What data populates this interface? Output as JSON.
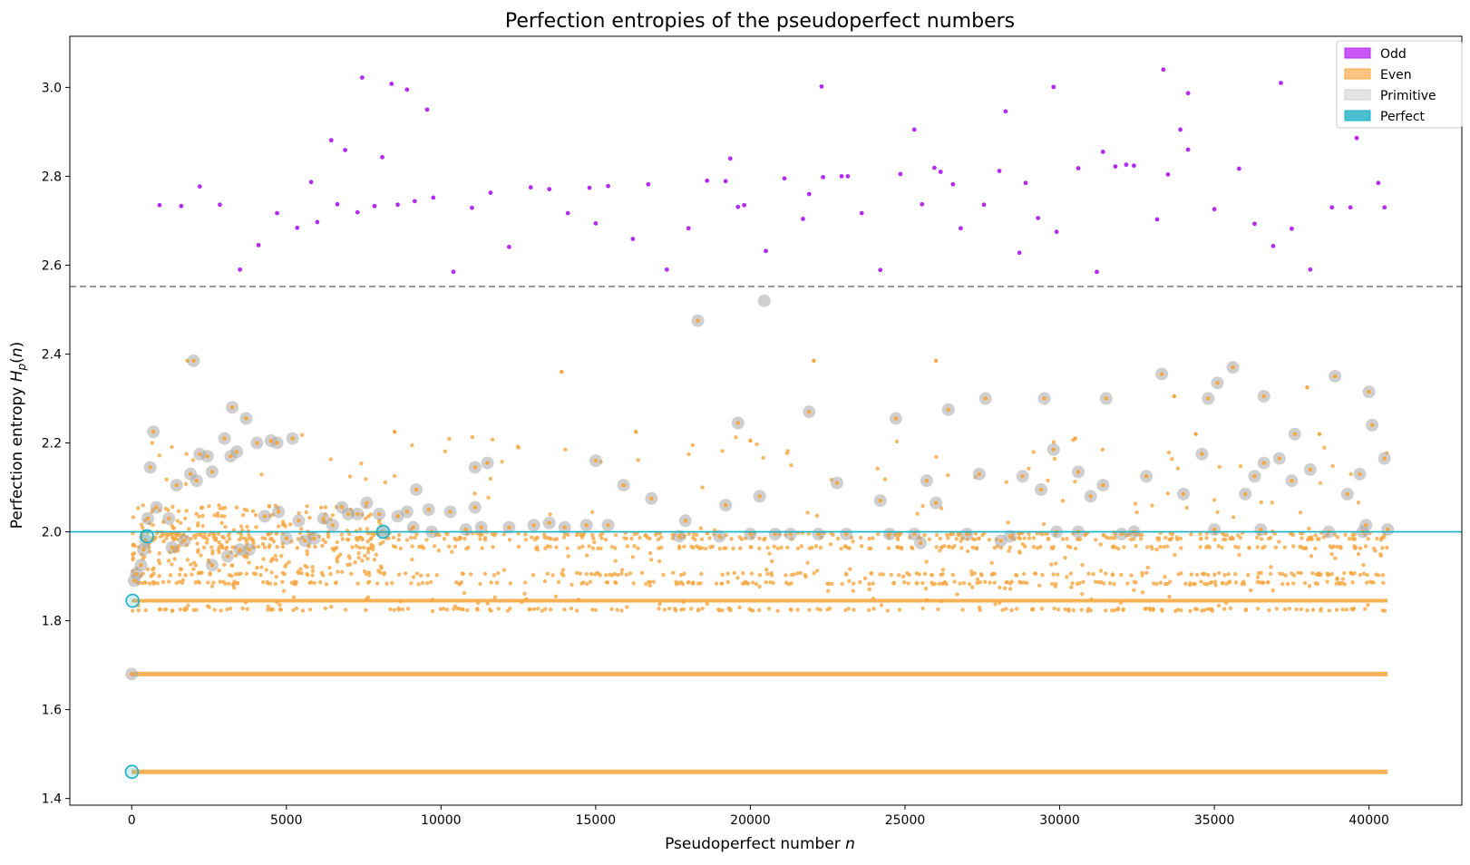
{
  "chart_data": {
    "type": "scatter",
    "title": "Perfection entropies of the pseudoperfect numbers",
    "xlabel_prefix": "Pseudoperfect number ",
    "xlabel_var": "n",
    "ylabel_prefix": "Perfection entropy ",
    "ylabel_var": "H",
    "ylabel_sub": "p",
    "ylabel_suffix_open": "(",
    "ylabel_suffix_close": ")",
    "xlim": [
      -2000,
      43000
    ],
    "ylim": [
      1.385,
      3.115
    ],
    "x_ticks": [
      0,
      5000,
      10000,
      15000,
      20000,
      25000,
      30000,
      35000,
      40000
    ],
    "x_tick_labels": [
      "0",
      "5000",
      "10000",
      "15000",
      "20000",
      "25000",
      "30000",
      "35000",
      "40000"
    ],
    "y_ticks": [
      1.4,
      1.6,
      1.8,
      2.0,
      2.2,
      2.4,
      2.6,
      2.8,
      3.0
    ],
    "y_tick_labels": [
      "1.4",
      "1.6",
      "1.8",
      "2.0",
      "2.2",
      "2.4",
      "2.6",
      "2.8",
      "3.0"
    ],
    "grid": false,
    "legend_position": "top-right",
    "legend": [
      {
        "label": "Odd",
        "color": "#b32bf0"
      },
      {
        "label": "Even",
        "color": "#f5a742"
      },
      {
        "label": "Primitive",
        "color": "#c8c8c8"
      },
      {
        "label": "Perfect",
        "color": "#17b0c8"
      }
    ],
    "reference_lines": [
      {
        "y": 2.552,
        "style": "dashed",
        "color": "#808080"
      },
      {
        "y": 2.0,
        "style": "solid",
        "color": "#17b0c8"
      }
    ],
    "dense_bands": [
      {
        "series": "Even",
        "y": 1.46,
        "x_range": [
          0,
          40600
        ]
      },
      {
        "series": "Even",
        "y": 1.68,
        "x_range": [
          0,
          40600
        ]
      },
      {
        "series": "Even",
        "y": 1.845,
        "x_range": [
          0,
          40600
        ]
      }
    ],
    "series": [
      {
        "name": "Odd",
        "color": "#b32bf0",
        "points": [
          [
            900,
            2.735
          ],
          [
            1600,
            2.733
          ],
          [
            2200,
            2.777
          ],
          [
            2850,
            2.736
          ],
          [
            3500,
            2.59
          ],
          [
            4100,
            2.645
          ],
          [
            4700,
            2.717
          ],
          [
            5350,
            2.684
          ],
          [
            5800,
            2.787
          ],
          [
            6000,
            2.697
          ],
          [
            6450,
            2.881
          ],
          [
            6650,
            2.737
          ],
          [
            6900,
            2.859
          ],
          [
            7300,
            2.719
          ],
          [
            7450,
            3.022
          ],
          [
            7850,
            2.733
          ],
          [
            8100,
            2.843
          ],
          [
            8400,
            3.008
          ],
          [
            8600,
            2.736
          ],
          [
            8900,
            2.995
          ],
          [
            9150,
            2.744
          ],
          [
            9550,
            2.95
          ],
          [
            9750,
            2.752
          ],
          [
            10400,
            2.585
          ],
          [
            11000,
            2.729
          ],
          [
            11600,
            2.763
          ],
          [
            12200,
            2.641
          ],
          [
            12900,
            2.775
          ],
          [
            13500,
            2.771
          ],
          [
            14100,
            2.717
          ],
          [
            14800,
            2.774
          ],
          [
            15000,
            2.694
          ],
          [
            15400,
            2.778
          ],
          [
            16200,
            2.659
          ],
          [
            16700,
            2.782
          ],
          [
            17300,
            2.59
          ],
          [
            18000,
            2.683
          ],
          [
            18600,
            2.79
          ],
          [
            19200,
            2.789
          ],
          [
            19350,
            2.84
          ],
          [
            19600,
            2.731
          ],
          [
            19800,
            2.735
          ],
          [
            20500,
            2.632
          ],
          [
            21100,
            2.795
          ],
          [
            21700,
            2.704
          ],
          [
            21900,
            2.76
          ],
          [
            22300,
            3.002
          ],
          [
            22350,
            2.798
          ],
          [
            22950,
            2.8
          ],
          [
            23150,
            2.8
          ],
          [
            23600,
            2.717
          ],
          [
            24200,
            2.589
          ],
          [
            24850,
            2.805
          ],
          [
            25300,
            2.905
          ],
          [
            25550,
            2.737
          ],
          [
            25950,
            2.819
          ],
          [
            26150,
            2.81
          ],
          [
            26550,
            2.782
          ],
          [
            26800,
            2.683
          ],
          [
            27550,
            2.736
          ],
          [
            28050,
            2.812
          ],
          [
            28250,
            2.946
          ],
          [
            28700,
            2.628
          ],
          [
            28900,
            2.785
          ],
          [
            29300,
            2.706
          ],
          [
            29800,
            3.001
          ],
          [
            29900,
            2.675
          ],
          [
            31200,
            2.585
          ],
          [
            30600,
            2.818
          ],
          [
            31400,
            2.855
          ],
          [
            31800,
            2.822
          ],
          [
            32150,
            2.826
          ],
          [
            32400,
            2.824
          ],
          [
            33150,
            2.703
          ],
          [
            33350,
            3.04
          ],
          [
            33500,
            2.804
          ],
          [
            33900,
            2.905
          ],
          [
            34150,
            2.987
          ],
          [
            34150,
            2.86
          ],
          [
            35000,
            2.726
          ],
          [
            35800,
            2.817
          ],
          [
            36300,
            2.693
          ],
          [
            36900,
            2.643
          ],
          [
            37150,
            3.01
          ],
          [
            37500,
            2.682
          ],
          [
            38100,
            2.59
          ],
          [
            38800,
            2.73
          ],
          [
            39400,
            2.73
          ],
          [
            39600,
            2.886
          ],
          [
            40300,
            2.785
          ],
          [
            40500,
            2.73
          ]
        ]
      },
      {
        "name": "Primitive",
        "color": "#c8c8c8",
        "points": [
          [
            0,
            1.68
          ],
          [
            80,
            1.89
          ],
          [
            150,
            1.905
          ],
          [
            300,
            1.925
          ],
          [
            380,
            1.96
          ],
          [
            450,
            1.98
          ],
          [
            520,
            2.03
          ],
          [
            600,
            2.145
          ],
          [
            700,
            2.225
          ],
          [
            800,
            2.055
          ],
          [
            1200,
            2.03
          ],
          [
            1300,
            1.965
          ],
          [
            1450,
            2.105
          ],
          [
            1700,
            1.98
          ],
          [
            1900,
            2.13
          ],
          [
            2000,
            2.385
          ],
          [
            2100,
            2.115
          ],
          [
            2200,
            2.175
          ],
          [
            2450,
            2.17
          ],
          [
            2600,
            1.925
          ],
          [
            2600,
            2.135
          ],
          [
            3000,
            2.21
          ],
          [
            3100,
            1.945
          ],
          [
            3200,
            2.17
          ],
          [
            3250,
            2.28
          ],
          [
            3400,
            2.18
          ],
          [
            3500,
            1.96
          ],
          [
            3700,
            2.255
          ],
          [
            3800,
            1.96
          ],
          [
            4050,
            2.2
          ],
          [
            4300,
            2.035
          ],
          [
            4500,
            2.205
          ],
          [
            4700,
            2.2
          ],
          [
            4750,
            2.045
          ],
          [
            5000,
            1.985
          ],
          [
            5200,
            2.21
          ],
          [
            5400,
            2.025
          ],
          [
            5600,
            1.98
          ],
          [
            5900,
            1.985
          ],
          [
            6200,
            2.03
          ],
          [
            6500,
            2.015
          ],
          [
            6800,
            2.055
          ],
          [
            7000,
            2.04
          ],
          [
            7300,
            2.04
          ],
          [
            7600,
            2.065
          ],
          [
            8000,
            2.04
          ],
          [
            8100,
            2.0
          ],
          [
            8600,
            2.035
          ],
          [
            8900,
            2.045
          ],
          [
            9100,
            2.01
          ],
          [
            9200,
            2.095
          ],
          [
            9600,
            2.05
          ],
          [
            9700,
            2.0
          ],
          [
            10300,
            2.045
          ],
          [
            10800,
            2.005
          ],
          [
            11100,
            2.055
          ],
          [
            11100,
            2.145
          ],
          [
            11300,
            2.01
          ],
          [
            11500,
            2.155
          ],
          [
            12200,
            2.01
          ],
          [
            13000,
            2.015
          ],
          [
            13500,
            2.02
          ],
          [
            14000,
            2.01
          ],
          [
            14700,
            2.015
          ],
          [
            15000,
            2.16
          ],
          [
            15400,
            2.015
          ],
          [
            15900,
            2.105
          ],
          [
            16800,
            2.075
          ],
          [
            17700,
            1.99
          ],
          [
            17900,
            2.025
          ],
          [
            18300,
            2.475
          ],
          [
            19000,
            1.99
          ],
          [
            19200,
            2.06
          ],
          [
            19600,
            2.245
          ],
          [
            20000,
            1.995
          ],
          [
            20300,
            2.08
          ],
          [
            20450,
            2.52
          ],
          [
            20800,
            1.995
          ],
          [
            21300,
            1.995
          ],
          [
            21900,
            2.27
          ],
          [
            22200,
            1.995
          ],
          [
            22800,
            2.11
          ],
          [
            23100,
            1.995
          ],
          [
            24200,
            2.07
          ],
          [
            24500,
            1.995
          ],
          [
            24700,
            2.255
          ],
          [
            25300,
            1.995
          ],
          [
            25500,
            1.975
          ],
          [
            25700,
            2.115
          ],
          [
            26000,
            2.065
          ],
          [
            26400,
            2.275
          ],
          [
            27000,
            1.995
          ],
          [
            27400,
            2.13
          ],
          [
            27600,
            2.3
          ],
          [
            28100,
            1.98
          ],
          [
            28400,
            1.99
          ],
          [
            28800,
            2.125
          ],
          [
            29400,
            2.095
          ],
          [
            29500,
            2.3
          ],
          [
            29900,
            2.0
          ],
          [
            29800,
            2.185
          ],
          [
            30600,
            2.0
          ],
          [
            30600,
            2.135
          ],
          [
            31000,
            2.08
          ],
          [
            31400,
            2.105
          ],
          [
            31500,
            2.3
          ],
          [
            32000,
            1.995
          ],
          [
            32400,
            2.0
          ],
          [
            32800,
            2.125
          ],
          [
            33300,
            2.355
          ],
          [
            34000,
            2.085
          ],
          [
            34600,
            2.175
          ],
          [
            34800,
            2.3
          ],
          [
            35000,
            2.005
          ],
          [
            35100,
            2.335
          ],
          [
            35600,
            2.37
          ],
          [
            36000,
            2.085
          ],
          [
            36300,
            2.125
          ],
          [
            36500,
            2.005
          ],
          [
            36600,
            2.155
          ],
          [
            36600,
            2.305
          ],
          [
            37100,
            2.165
          ],
          [
            37500,
            2.115
          ],
          [
            37600,
            2.22
          ],
          [
            38100,
            2.14
          ],
          [
            38700,
            2.0
          ],
          [
            38900,
            2.35
          ],
          [
            39300,
            2.085
          ],
          [
            39700,
            2.13
          ],
          [
            39800,
            2.0
          ],
          [
            39900,
            2.015
          ],
          [
            40000,
            2.315
          ],
          [
            40100,
            2.24
          ],
          [
            40500,
            2.165
          ],
          [
            40600,
            2.005
          ]
        ]
      },
      {
        "name": "Perfect",
        "color": "#17b0c8",
        "points": [
          [
            6,
            1.46
          ],
          [
            28,
            1.845
          ],
          [
            496,
            1.99
          ],
          [
            8128,
            2.0
          ]
        ]
      }
    ]
  }
}
